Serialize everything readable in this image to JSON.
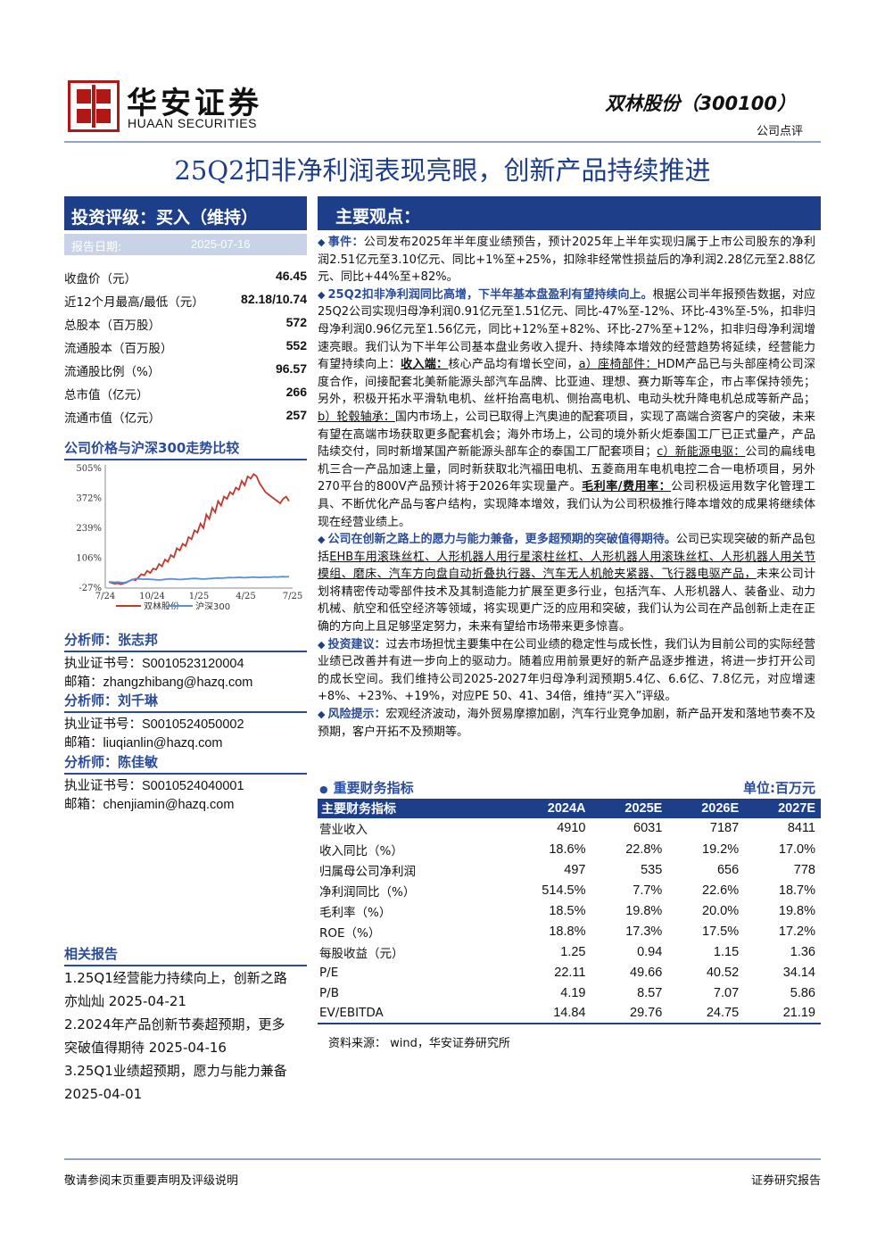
{
  "header": {
    "logo_cn": "华安证券",
    "logo_en": "HUAAN SECURITIES",
    "stock": "双林股份（300100）",
    "report_type": "公司点评"
  },
  "title": "25Q2扣非净利润表现亮眼，创新产品持续推进",
  "rating": {
    "label": "投资评级：买入（维持）",
    "date_label": "报告日期:",
    "date": "2025-07-16"
  },
  "market_info": [
    {
      "k": "收盘价（元）",
      "v": "46.45"
    },
    {
      "k": "近12个月最高/最低（元）",
      "v": "82.18/10.74"
    },
    {
      "k": "总股本（百万股）",
      "v": "572"
    },
    {
      "k": "流通股本（百万股）",
      "v": "552"
    },
    {
      "k": "流通股比例（%）",
      "v": "96.57"
    },
    {
      "k": "总市值（亿元）",
      "v": "266"
    },
    {
      "k": "流通市值（亿元）",
      "v": "257"
    }
  ],
  "chart_section_title": "公司价格与沪深300走势比较",
  "chart_data": {
    "type": "line",
    "title": "",
    "x_ticks": [
      "7/24",
      "10/24",
      "1/25",
      "4/25",
      "7/25"
    ],
    "y_ticks": [
      "505%",
      "372%",
      "239%",
      "106%",
      "-27%"
    ],
    "ylim": [
      -27,
      505
    ],
    "series": [
      {
        "name": "双林股份",
        "color": "#c0392b",
        "values": [
          0,
          -4,
          -8,
          -5,
          -10,
          -6,
          -2,
          5,
          12,
          8,
          20,
          35,
          30,
          50,
          40,
          60,
          55,
          80,
          70,
          100,
          90,
          120,
          110,
          150,
          140,
          170,
          160,
          200,
          190,
          230,
          220,
          260,
          240,
          300,
          280,
          330,
          310,
          360,
          340,
          380,
          370,
          400,
          390,
          420,
          410,
          450,
          430,
          470,
          460,
          480,
          470,
          440,
          420,
          400,
          390,
          380,
          370,
          360,
          350,
          370,
          380,
          360
        ]
      },
      {
        "name": "沪深300",
        "color": "#5b8fd6",
        "values": [
          0,
          0,
          -1,
          0,
          -2,
          -3,
          0,
          5,
          10,
          15,
          14,
          13,
          12,
          13,
          12,
          11,
          10,
          9,
          10,
          12,
          13,
          14,
          13,
          12,
          11,
          12,
          13,
          14,
          15,
          16,
          15,
          14,
          13,
          14,
          15,
          16,
          17,
          18,
          17,
          18,
          19,
          20,
          19,
          20,
          21,
          20,
          19,
          20,
          21,
          22,
          21,
          20,
          21,
          22,
          21,
          22,
          23,
          22,
          23,
          24,
          23,
          24
        ]
      }
    ]
  },
  "analysts": [
    {
      "head": "分析师：张志邦",
      "cert_label": "执业证书号：",
      "cert": "S0010523120004",
      "mail_label": "邮箱：",
      "mail": "zhangzhibang@hazq.com"
    },
    {
      "head": "分析师：刘千琳",
      "cert_label": "执业证书号：",
      "cert": "S0010524050002",
      "mail_label": "邮箱：",
      "mail": "liuqianlin@hazq.com"
    },
    {
      "head": "分析师：陈佳敏",
      "cert_label": "执业证书号：",
      "cert": "S0010524040001",
      "mail_label": "邮箱：",
      "mail": "chenjiamin@hazq.com"
    }
  ],
  "related": {
    "head": "相关报告",
    "lines": [
      "1.25Q1经营能力持续向上，创新之路",
      "亦灿灿 2025-04-21",
      "2.2024年产品创新节奏超预期，更多",
      "突破值得期待 2025-04-16",
      "3.25Q1业绩超预期，愿力与能力兼备",
      "2025-04-01"
    ]
  },
  "main_view": {
    "head": "主要观点：",
    "p1_lead": "事件：",
    "p1": "公司发布2025年半年度业绩预告，预计2025年上半年实现归属于上市公司股东的净利润2.51亿元至3.10亿元、同比+1%至+25%，扣除非经常性损益后的净利润2.28亿元至2.88亿元、同比+44%至+82%。",
    "p2_lead": "25Q2扣非净利润同比高增，下半年基本盘盈利有望持续向上。",
    "p2a": "根据公司半年报预告数据，对应25Q2公司实现归母净利润0.91亿元至1.51亿元、同比-47%至-12%、环比-43%至-5%，扣非归母净利润0.96亿元至1.56亿元，同比+12%至+82%、环比-27%至+12%，扣非归母净利润增速亮眼。我们认为下半年公司基本盘业务收入提升、持续降本增效的经营趋势将延续，经营能力有望持续向上：",
    "p2_income": "收入端：",
    "p2b": "核心产品均有增长空间，",
    "p2_a": "a）座椅部件：",
    "p2c": "HDM产品已与头部座椅公司深度合作，间接配套北美新能源头部汽车品牌、比亚迪、理想、赛力斯等车企，市占率保持领先；另外，积极开拓水平滑轨电机、丝杆抬高电机、侧抬高电机、电动头枕升降电机总成等新产品；",
    "p2_b": "b）轮毂轴承：",
    "p2d": "国内市场上，公司已取得上汽奥迪的配套项目，实现了高端合资客户的突破，未来有望在高端市场获取更多配套机会；海外市场上，公司的境外新火炬泰国工厂已正式量产，产品陆续交付，同时新增某国产新能源头部车企的泰国工厂配套项目；",
    "p2_c": "c）新能源电驱：",
    "p2e": "公司的扁线电机三合一产品加速上量，同时新获取北汽福田电机、五菱商用车电机电控二合一电桥项目，另外270平台的800V产品预计将于2026年实现量产。",
    "p2_margin": "毛利率/费用率：",
    "p2f": "公司积极运用数字化管理工具、不断优化产品与客户结构，实现降本增效，我们认为公司积极推行降本增效的成果将继续体现在经营业绩上。",
    "p3_lead": "公司在创新之路上的愿力与能力兼备，更多超预期的突破值得期待。",
    "p3a": "公司已实现突破的新产品包括",
    "p3_u": "EHB车用滚珠丝杠、人形机器人用行星滚柱丝杠、人形机器人用滚珠丝杠、人形机器人用关节模组、磨床、汽车方向盘自动折叠执行器、汽车无人机舱夹紧器、飞行器电驱产品，",
    "p3b": "未来公司计划将精密传动零部件技术及其制造能力扩展至更多行业，包括汽车、人形机器人、装备业、动力机械、航空和低空经济等领域，将实现更广泛的应用和突破，我们认为公司在产品创新上走在正确的方向上且足够坚定努力，未来有望给市场带来更多惊喜。",
    "p4_lead": "投资建议：",
    "p4": "过去市场担忧主要集中在公司业绩的稳定性与成长性，我们认为目前公司的实际经营业绩已改善并有进一步向上的驱动力。随着应用前景更好的新产品逐步推进，将进一步打开公司的成长空间。我们维持公司2025-2027年归母净利润预期5.4亿、6.6亿、7.8亿元，对应增速+8%、+23%、+19%，对应PE 50、41、34倍，维持“买入”评级。",
    "p5_lead": "风险提示：",
    "p5": "宏观经济波动，海外贸易摩擦加剧，汽车行业竞争加剧，新产品开发和落地节奏不及预期，客户开拓不及预期等。"
  },
  "fin": {
    "head": "重要财务指标",
    "unit": "单位:百万元",
    "cols": [
      "主要财务指标",
      "2024A",
      "2025E",
      "2026E",
      "2027E"
    ],
    "rows": [
      [
        "营业收入",
        "4910",
        "6031",
        "7187",
        "8411"
      ],
      [
        "收入同比（%）",
        "18.6%",
        "22.8%",
        "19.2%",
        "17.0%"
      ],
      [
        "归属母公司净利润",
        "497",
        "535",
        "656",
        "778"
      ],
      [
        "净利润同比（%）",
        "514.5%",
        "7.7%",
        "22.6%",
        "18.7%"
      ],
      [
        "毛利率（%）",
        "18.5%",
        "19.8%",
        "20.0%",
        "19.8%"
      ],
      [
        "ROE（%）",
        "18.8%",
        "17.3%",
        "17.5%",
        "17.2%"
      ],
      [
        "每股收益（元）",
        "1.25",
        "0.94",
        "1.15",
        "1.36"
      ],
      [
        "P/E",
        "22.11",
        "49.66",
        "40.52",
        "34.14"
      ],
      [
        "P/B",
        "4.19",
        "8.57",
        "7.07",
        "5.86"
      ],
      [
        "EV/EBITDA",
        "14.84",
        "29.76",
        "24.75",
        "21.19"
      ]
    ],
    "source": "资料来源：   wind，华安证券研究所"
  },
  "footer": {
    "left": "敬请参阅末页重要声明及评级说明",
    "right": "证券研究报告"
  }
}
